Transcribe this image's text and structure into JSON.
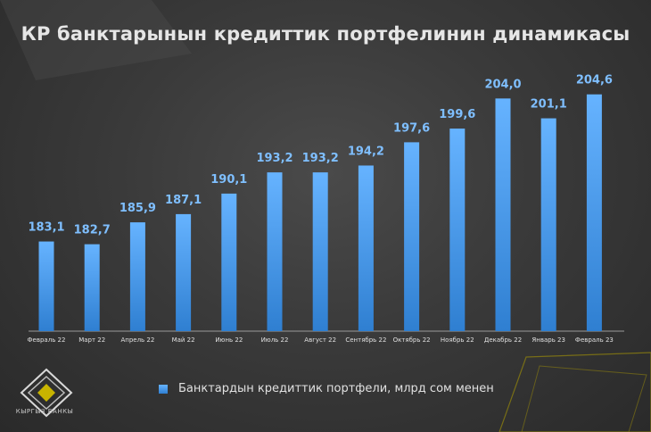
{
  "title": "КР банктарынын кредиттик портфелинин динамикасы",
  "legend": {
    "label": "Банктардын кредиттик портфели, млрд сом менен"
  },
  "brand": {
    "name": "КЫРГЫЗ БАНКЫ"
  },
  "colors": {
    "bar_top": "#66b3ff",
    "bar_bottom": "#2f7fd1",
    "label": "#7fbfff",
    "accent": "#c8b400"
  },
  "chart_data": {
    "type": "bar",
    "title": "КР банктарынын кредиттик портфелинин динамикасы",
    "categories": [
      "Февраль 22",
      "Март 22",
      "Апрель 22",
      "Май 22",
      "Июнь 22",
      "Июль 22",
      "Август 22",
      "Сентябрь 22",
      "Октябрь 22",
      "Ноябрь 22",
      "Декабрь 22",
      "Январь 23",
      "Февраль 23"
    ],
    "values": [
      183.1,
      182.7,
      185.9,
      187.1,
      190.1,
      193.2,
      193.2,
      194.2,
      197.6,
      199.6,
      204.0,
      201.1,
      204.6
    ],
    "value_labels": [
      "183,1",
      "182,7",
      "185,9",
      "187,1",
      "190,1",
      "193,2",
      "193,2",
      "194,2",
      "197,6",
      "199,6",
      "204,0",
      "201,1",
      "204,6"
    ],
    "series": [
      {
        "name": "Банктардын кредиттик портфели, млрд сом менен"
      }
    ],
    "ylim": [
      170,
      206
    ],
    "xlabel": "",
    "ylabel": "",
    "grid": false,
    "legend_position": "bottom"
  }
}
